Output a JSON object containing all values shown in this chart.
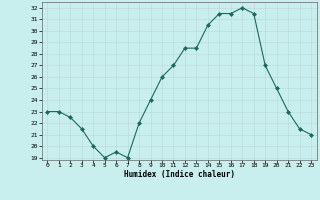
{
  "x": [
    0,
    1,
    2,
    3,
    4,
    5,
    6,
    7,
    8,
    9,
    10,
    11,
    12,
    13,
    14,
    15,
    16,
    17,
    18,
    19,
    20,
    21,
    22,
    23
  ],
  "y": [
    23,
    23,
    22.5,
    21.5,
    20,
    19,
    19.5,
    19,
    22,
    24,
    26,
    27,
    28.5,
    28.5,
    30.5,
    31.5,
    31.5,
    32,
    31.5,
    27,
    25,
    23,
    21.5,
    21
  ],
  "line_color": "#1a6b5a",
  "marker": "D",
  "marker_size": 2.0,
  "bg_color": "#c8eeed",
  "grid_color": "#b8d8d8",
  "xlabel": "Humidex (Indice chaleur)",
  "xlim": [
    -0.5,
    23.5
  ],
  "ylim": [
    18.8,
    32.5
  ],
  "yticks": [
    19,
    20,
    21,
    22,
    23,
    24,
    25,
    26,
    27,
    28,
    29,
    30,
    31,
    32
  ],
  "xticks": [
    0,
    1,
    2,
    3,
    4,
    5,
    6,
    7,
    8,
    9,
    10,
    11,
    12,
    13,
    14,
    15,
    16,
    17,
    18,
    19,
    20,
    21,
    22,
    23
  ]
}
